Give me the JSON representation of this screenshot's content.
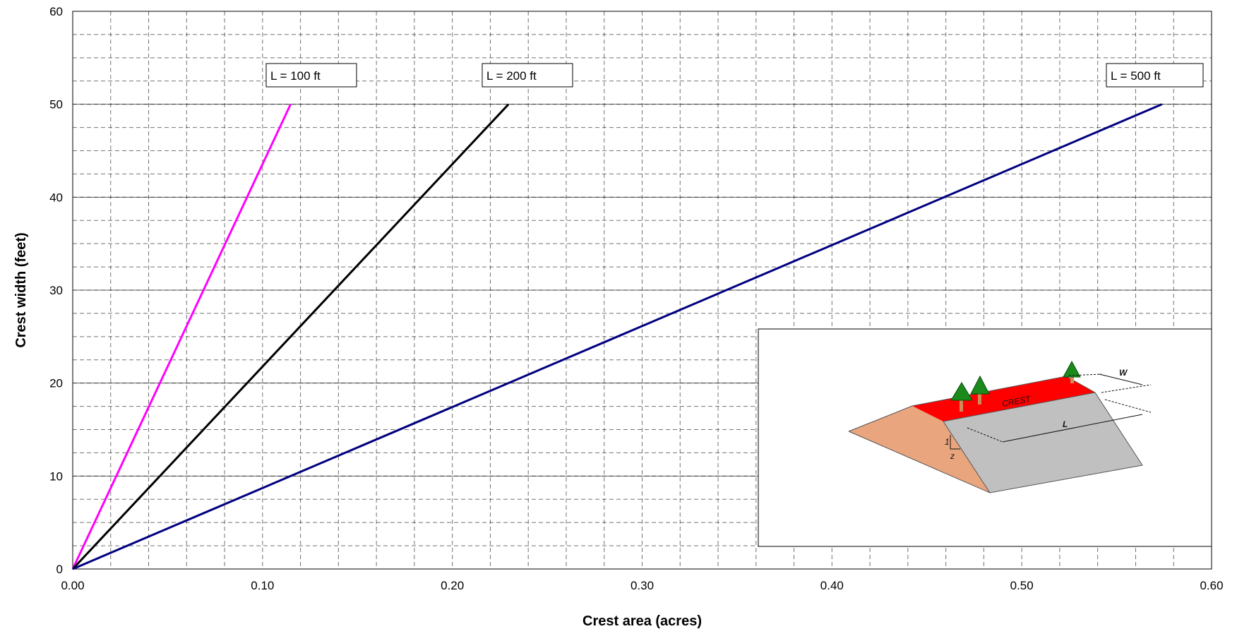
{
  "chart_data": {
    "type": "line",
    "title": "",
    "xlabel": "Crest area (acres)",
    "ylabel": "Crest width (feet)",
    "xlim": [
      0,
      0.6
    ],
    "ylim": [
      0,
      60
    ],
    "x_ticks": [
      "0.00",
      "0.10",
      "0.20",
      "0.30",
      "0.40",
      "0.50",
      "0.60"
    ],
    "y_ticks": [
      "0",
      "10",
      "20",
      "30",
      "40",
      "50",
      "60"
    ],
    "grid": {
      "major": true,
      "minor_dashed": true,
      "x_minor_step": 0.02,
      "y_minor_step": 2.5
    },
    "legend": "none",
    "series": [
      {
        "name": "L = 100 ft",
        "x": [
          0,
          0.1148
        ],
        "y": [
          0,
          50
        ],
        "color": "#ff00ff"
      },
      {
        "name": "L = 200 ft",
        "x": [
          0,
          0.2296
        ],
        "y": [
          0,
          50
        ],
        "color": "#000000"
      },
      {
        "name": "L = 500 ft",
        "x": [
          0,
          0.5739
        ],
        "y": [
          0,
          50
        ],
        "color": "#000080"
      }
    ],
    "inset": {
      "description_labels": {
        "crest": "CREST",
        "width": "W",
        "length": "L",
        "slope_rise": "1",
        "slope_run": "z"
      },
      "colors": {
        "crest": "#ff0000",
        "end_slope": "#e8a57e",
        "side_slope": "#c0c0c0",
        "tree": "#1a8a1a",
        "trunk": "#d08a5a"
      }
    }
  }
}
